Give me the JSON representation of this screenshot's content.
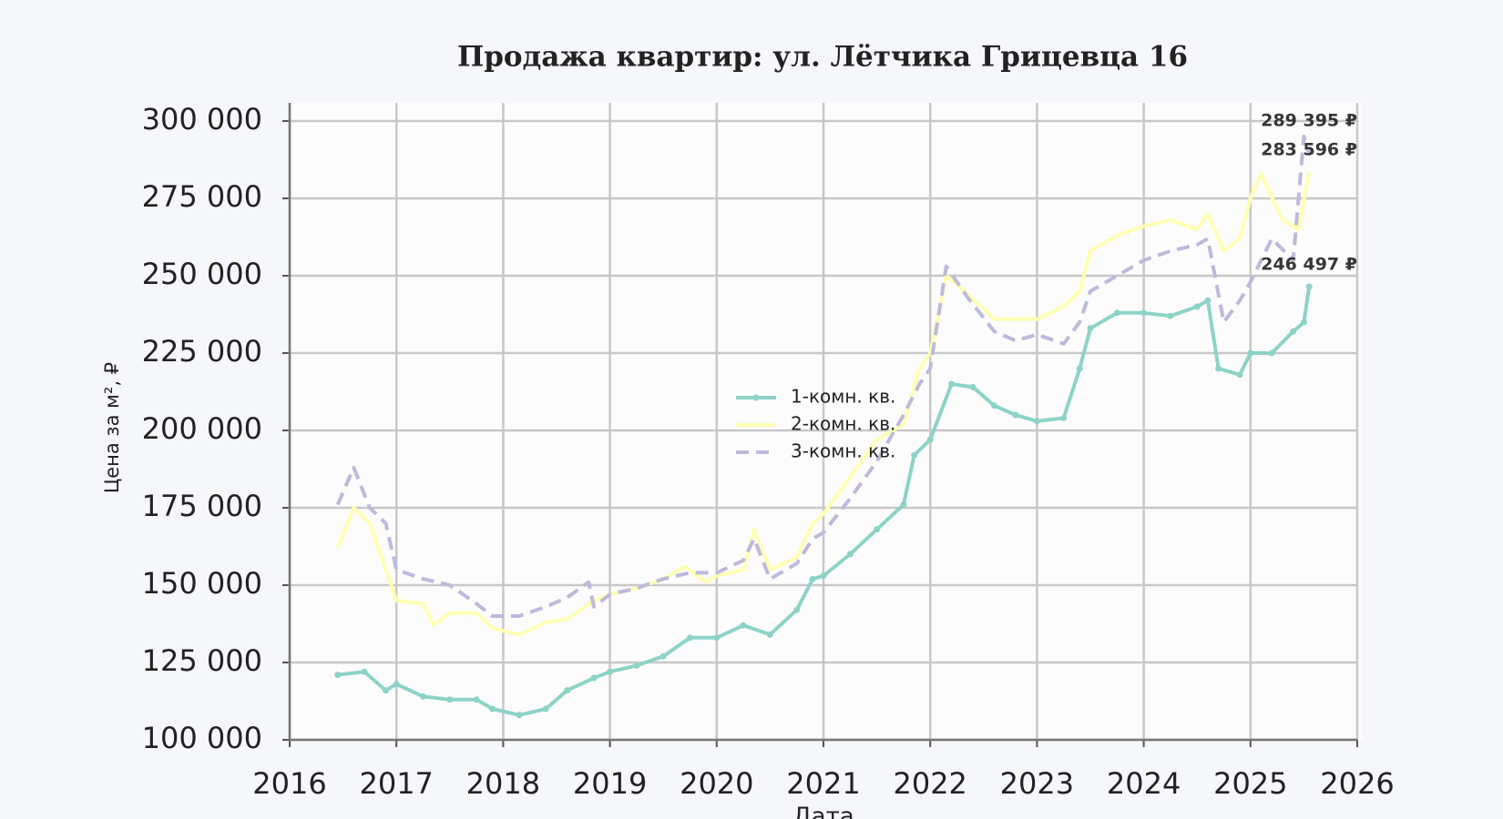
{
  "chart_data": {
    "type": "line",
    "title": "Продажа квартир: ул. Лётчика Грицевца 16",
    "x_label": "Дата",
    "y_label": "Цена за м², ₽",
    "xlim": [
      2016,
      2026
    ],
    "xticks": [
      2016,
      2017,
      2018,
      2019,
      2020,
      2021,
      2022,
      2023,
      2024,
      2025,
      2026
    ],
    "ylim": [
      100000,
      300000
    ],
    "yticks": [
      {
        "value": 100000,
        "label": "100 000"
      },
      {
        "value": 125000,
        "label": "125 000"
      },
      {
        "value": 150000,
        "label": "150 000"
      },
      {
        "value": 175000,
        "label": "175 000"
      },
      {
        "value": 200000,
        "label": "200 000"
      },
      {
        "value": 225000,
        "label": "225 000"
      },
      {
        "value": 250000,
        "label": "250 000"
      },
      {
        "value": 275000,
        "label": "275 000"
      },
      {
        "value": 300000,
        "label": "300 000"
      }
    ],
    "grid": true,
    "legend": "center",
    "series": [
      {
        "name": "1-комн. кв.",
        "color": "#8dd3c7",
        "linestyle": "solid",
        "marker": "dot",
        "x": [
          2016.45,
          2016.7,
          2016.9,
          2017.0,
          2017.25,
          2017.5,
          2017.75,
          2017.9,
          2018.15,
          2018.4,
          2018.6,
          2018.85,
          2019.0,
          2019.25,
          2019.5,
          2019.75,
          2020.0,
          2020.25,
          2020.5,
          2020.75,
          2020.9,
          2021.0,
          2021.25,
          2021.5,
          2021.75,
          2021.85,
          2022.0,
          2022.2,
          2022.4,
          2022.6,
          2022.8,
          2023.0,
          2023.25,
          2023.4,
          2023.5,
          2023.75,
          2024.0,
          2024.25,
          2024.5,
          2024.6,
          2024.7,
          2024.9,
          2025.0,
          2025.2,
          2025.4,
          2025.5,
          2025.55
        ],
        "values": [
          121000,
          122000,
          116000,
          118000,
          114000,
          113000,
          113000,
          110000,
          108000,
          110000,
          116000,
          120000,
          122000,
          124000,
          127000,
          133000,
          133000,
          137000,
          134000,
          142000,
          152000,
          153000,
          160000,
          168000,
          176000,
          192000,
          197000,
          215000,
          214000,
          208000,
          205000,
          203000,
          204000,
          220000,
          233000,
          238000,
          238000,
          237000,
          240000,
          242000,
          220000,
          218000,
          225000,
          225000,
          232000,
          235000,
          246497
        ]
      },
      {
        "name": "2-комн. кв.",
        "color": "#ffffb3",
        "linestyle": "solid",
        "marker": "none",
        "x": [
          2016.45,
          2016.6,
          2016.75,
          2016.85,
          2017.0,
          2017.25,
          2017.35,
          2017.5,
          2017.75,
          2017.9,
          2018.15,
          2018.4,
          2018.6,
          2018.85,
          2019.0,
          2019.25,
          2019.5,
          2019.7,
          2019.9,
          2020.0,
          2020.25,
          2020.35,
          2020.5,
          2020.75,
          2020.9,
          2021.0,
          2021.25,
          2021.5,
          2021.75,
          2021.9,
          2022.0,
          2022.15,
          2022.35,
          2022.6,
          2022.8,
          2023.0,
          2023.25,
          2023.4,
          2023.5,
          2023.75,
          2024.0,
          2024.25,
          2024.5,
          2024.6,
          2024.75,
          2024.9,
          2025.0,
          2025.1,
          2025.3,
          2025.45,
          2025.55
        ],
        "values": [
          162000,
          175000,
          170000,
          160000,
          145000,
          144000,
          137000,
          141000,
          141000,
          136000,
          134000,
          138000,
          139000,
          145000,
          147000,
          149000,
          152000,
          156000,
          151000,
          153000,
          155000,
          168000,
          155000,
          159000,
          170000,
          173000,
          185000,
          197000,
          202000,
          220000,
          225000,
          250000,
          244000,
          236000,
          236000,
          236000,
          240000,
          245000,
          258000,
          263000,
          266000,
          268000,
          265000,
          270000,
          258000,
          262000,
          275000,
          283000,
          268000,
          265000,
          283596
        ]
      },
      {
        "name": "3-комн. кв.",
        "color": "#bebada",
        "linestyle": "dashed",
        "marker": "none",
        "x": [
          2016.45,
          2016.6,
          2016.75,
          2016.9,
          2017.0,
          2017.25,
          2017.5,
          2017.75,
          2017.9,
          2018.15,
          2018.4,
          2018.6,
          2018.8,
          2018.85,
          2019.0,
          2019.25,
          2019.5,
          2019.75,
          2020.0,
          2020.25,
          2020.35,
          2020.5,
          2020.75,
          2020.9,
          2021.0,
          2021.25,
          2021.5,
          2021.75,
          2021.9,
          2022.0,
          2022.15,
          2022.35,
          2022.6,
          2022.8,
          2023.0,
          2023.25,
          2023.4,
          2023.5,
          2023.75,
          2024.0,
          2024.25,
          2024.5,
          2024.6,
          2024.75,
          2024.9,
          2025.0,
          2025.2,
          2025.4,
          2025.5,
          2025.55
        ],
        "values": [
          176000,
          188000,
          175000,
          170000,
          155000,
          152000,
          150000,
          144000,
          140000,
          140000,
          143000,
          146000,
          151000,
          143000,
          147000,
          149000,
          152000,
          154000,
          154000,
          158000,
          165000,
          152000,
          157000,
          165000,
          167000,
          178000,
          190000,
          205000,
          215000,
          220000,
          253000,
          243000,
          232000,
          229000,
          231000,
          228000,
          235000,
          245000,
          250000,
          255000,
          258000,
          260000,
          262000,
          235000,
          242000,
          248000,
          262000,
          255000,
          295000,
          289395
        ]
      }
    ],
    "annotations": [
      {
        "text": "289 395 ₽",
        "series": 2
      },
      {
        "text": "283 596 ₽",
        "series": 1
      },
      {
        "text": "246 497 ₽",
        "series": 0
      }
    ]
  }
}
